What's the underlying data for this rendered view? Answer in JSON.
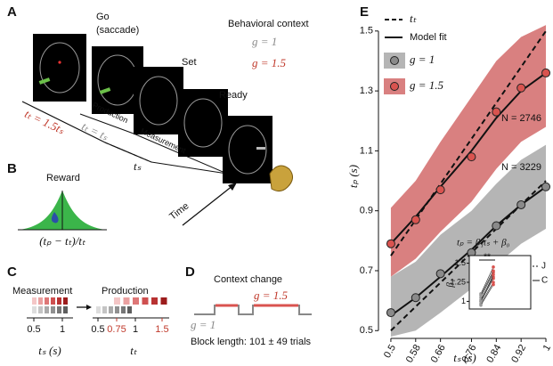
{
  "panel_labels": [
    "A",
    "B",
    "C",
    "D",
    "E"
  ],
  "panel_a": {
    "go": "Go",
    "go_sub": "(saccade)",
    "set": "Set",
    "ready": "Ready",
    "context_title": "Behavioral context",
    "context_g1": "g = 1",
    "context_g15": "g = 1.5",
    "rule_g15": "tₜ = 1.5tₛ",
    "rule_g1": "tₜ = tₛ",
    "production": "Production",
    "measurement": "Measurement",
    "ts": "tₛ",
    "time": "Time"
  },
  "panel_b": {
    "reward": "Reward",
    "x_label": "(tₚ − tₜ)/tₜ"
  },
  "panel_c": {
    "measurement": "Measurement",
    "production": "Production",
    "ts_ticks": [
      "0.5",
      "1"
    ],
    "ts_label": "tₛ (s)",
    "tt_ticks": [
      "0.5",
      "0.75",
      "1",
      "1.5"
    ],
    "tt_label": "tₜ"
  },
  "panel_d": {
    "title": "Context change",
    "g15": "g = 1.5",
    "g1": "g = 1",
    "block": "Block length: 101 ± 49 trials"
  },
  "chart_data": {
    "type": "line",
    "x_label": "tₛ (s)",
    "y_label": "tₚ (s)",
    "x": [
      0.5,
      0.58,
      0.66,
      0.76,
      0.84,
      0.92,
      1
    ],
    "xlim": [
      0.46,
      1.02
    ],
    "xticks": [
      0.5,
      0.58,
      0.66,
      0.76,
      0.84,
      0.92,
      1
    ],
    "ylim": [
      0.48,
      1.55
    ],
    "yticks": [
      0.5,
      0.7,
      0.9,
      1.1,
      1.3,
      1.5
    ],
    "legend": {
      "target": "tₜ",
      "fit": "Model fit"
    },
    "series": [
      {
        "name": "g = 1",
        "color": "#8a8a8a",
        "band_color": "#b5b5b5",
        "annotation": "N = 3229",
        "values": [
          0.56,
          0.61,
          0.69,
          0.76,
          0.85,
          0.92,
          0.98
        ],
        "fit": [
          0.55,
          0.61,
          0.68,
          0.77,
          0.85,
          0.92,
          0.98
        ],
        "target": [
          0.5,
          0.58,
          0.66,
          0.76,
          0.84,
          0.92,
          1
        ],
        "band_low": [
          0.48,
          0.5,
          0.56,
          0.64,
          0.72,
          0.79,
          0.84
        ],
        "band_high": [
          0.68,
          0.73,
          0.82,
          0.9,
          0.99,
          1.07,
          1.12
        ]
      },
      {
        "name": "g = 1.5",
        "color": "#d9534f",
        "band_color": "#d98080",
        "annotation": "N = 2746",
        "values": [
          0.79,
          0.87,
          0.97,
          1.08,
          1.23,
          1.31,
          1.36
        ],
        "fit": [
          0.79,
          0.88,
          0.98,
          1.1,
          1.21,
          1.3,
          1.36
        ],
        "target": [
          0.75,
          0.87,
          0.99,
          1.14,
          1.26,
          1.38,
          1.5
        ],
        "band_low": [
          0.68,
          0.74,
          0.83,
          0.93,
          1.04,
          1.13,
          1.18
        ],
        "band_high": [
          0.91,
          1.0,
          1.13,
          1.28,
          1.4,
          1.48,
          1.52
        ]
      }
    ],
    "inset": {
      "formula": "tₚ = β₁tₛ + β₀",
      "y_label": "β₁",
      "ylim": [
        0.9,
        1.6
      ],
      "yticks": [
        1,
        1.25,
        1.5
      ],
      "significance": "**",
      "legend_j": "J",
      "legend_c": "C",
      "g1_values": [
        1.0,
        1.05,
        0.97,
        1.1,
        1.02,
        0.95,
        1.08,
        1.0
      ],
      "g15_values": [
        1.3,
        1.38,
        1.25,
        1.45,
        1.32,
        1.22,
        1.4,
        1.35
      ]
    }
  }
}
